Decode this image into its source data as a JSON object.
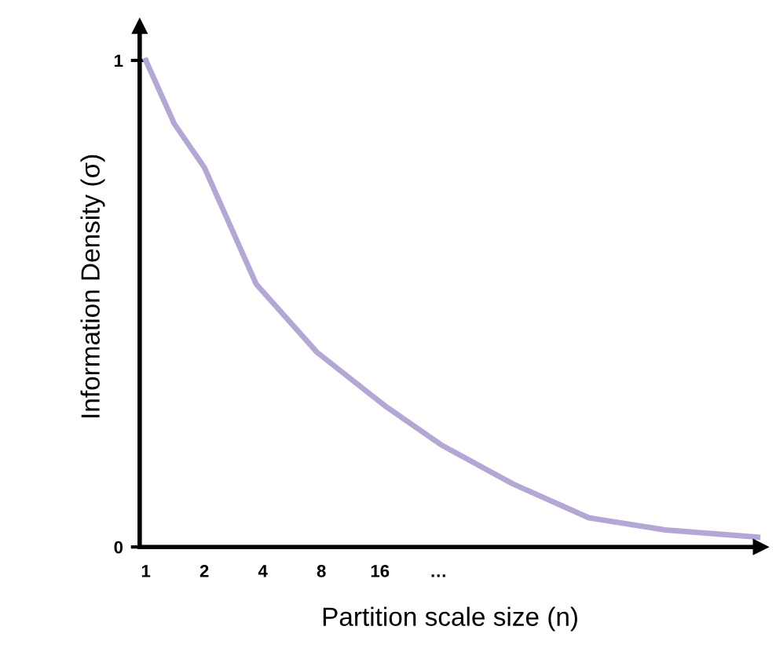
{
  "chart_data": {
    "type": "line",
    "xlabel": "Partition scale size (n)",
    "ylabel": "Information Density (σ)",
    "series": [
      {
        "color": "#b4a7d6",
        "x": [
          1,
          1.4,
          2,
          3.7,
          7.6,
          17,
          33,
          77,
          190,
          470,
          1420
        ],
        "values": [
          1.0,
          0.87,
          0.78,
          0.54,
          0.4,
          0.29,
          0.21,
          0.13,
          0.06,
          0.035,
          0.02
        ]
      }
    ],
    "log": "x",
    "xlim": [
      0.93,
      1450
    ],
    "ylim": [
      0,
      1.07
    ],
    "xticks": [
      1,
      2,
      4,
      8,
      16,
      {
        "value": 32,
        "label": "…"
      }
    ],
    "yticks": [
      0,
      1
    ],
    "grid": false,
    "legend": false,
    "marker": "none",
    "line_style": "solid"
  }
}
